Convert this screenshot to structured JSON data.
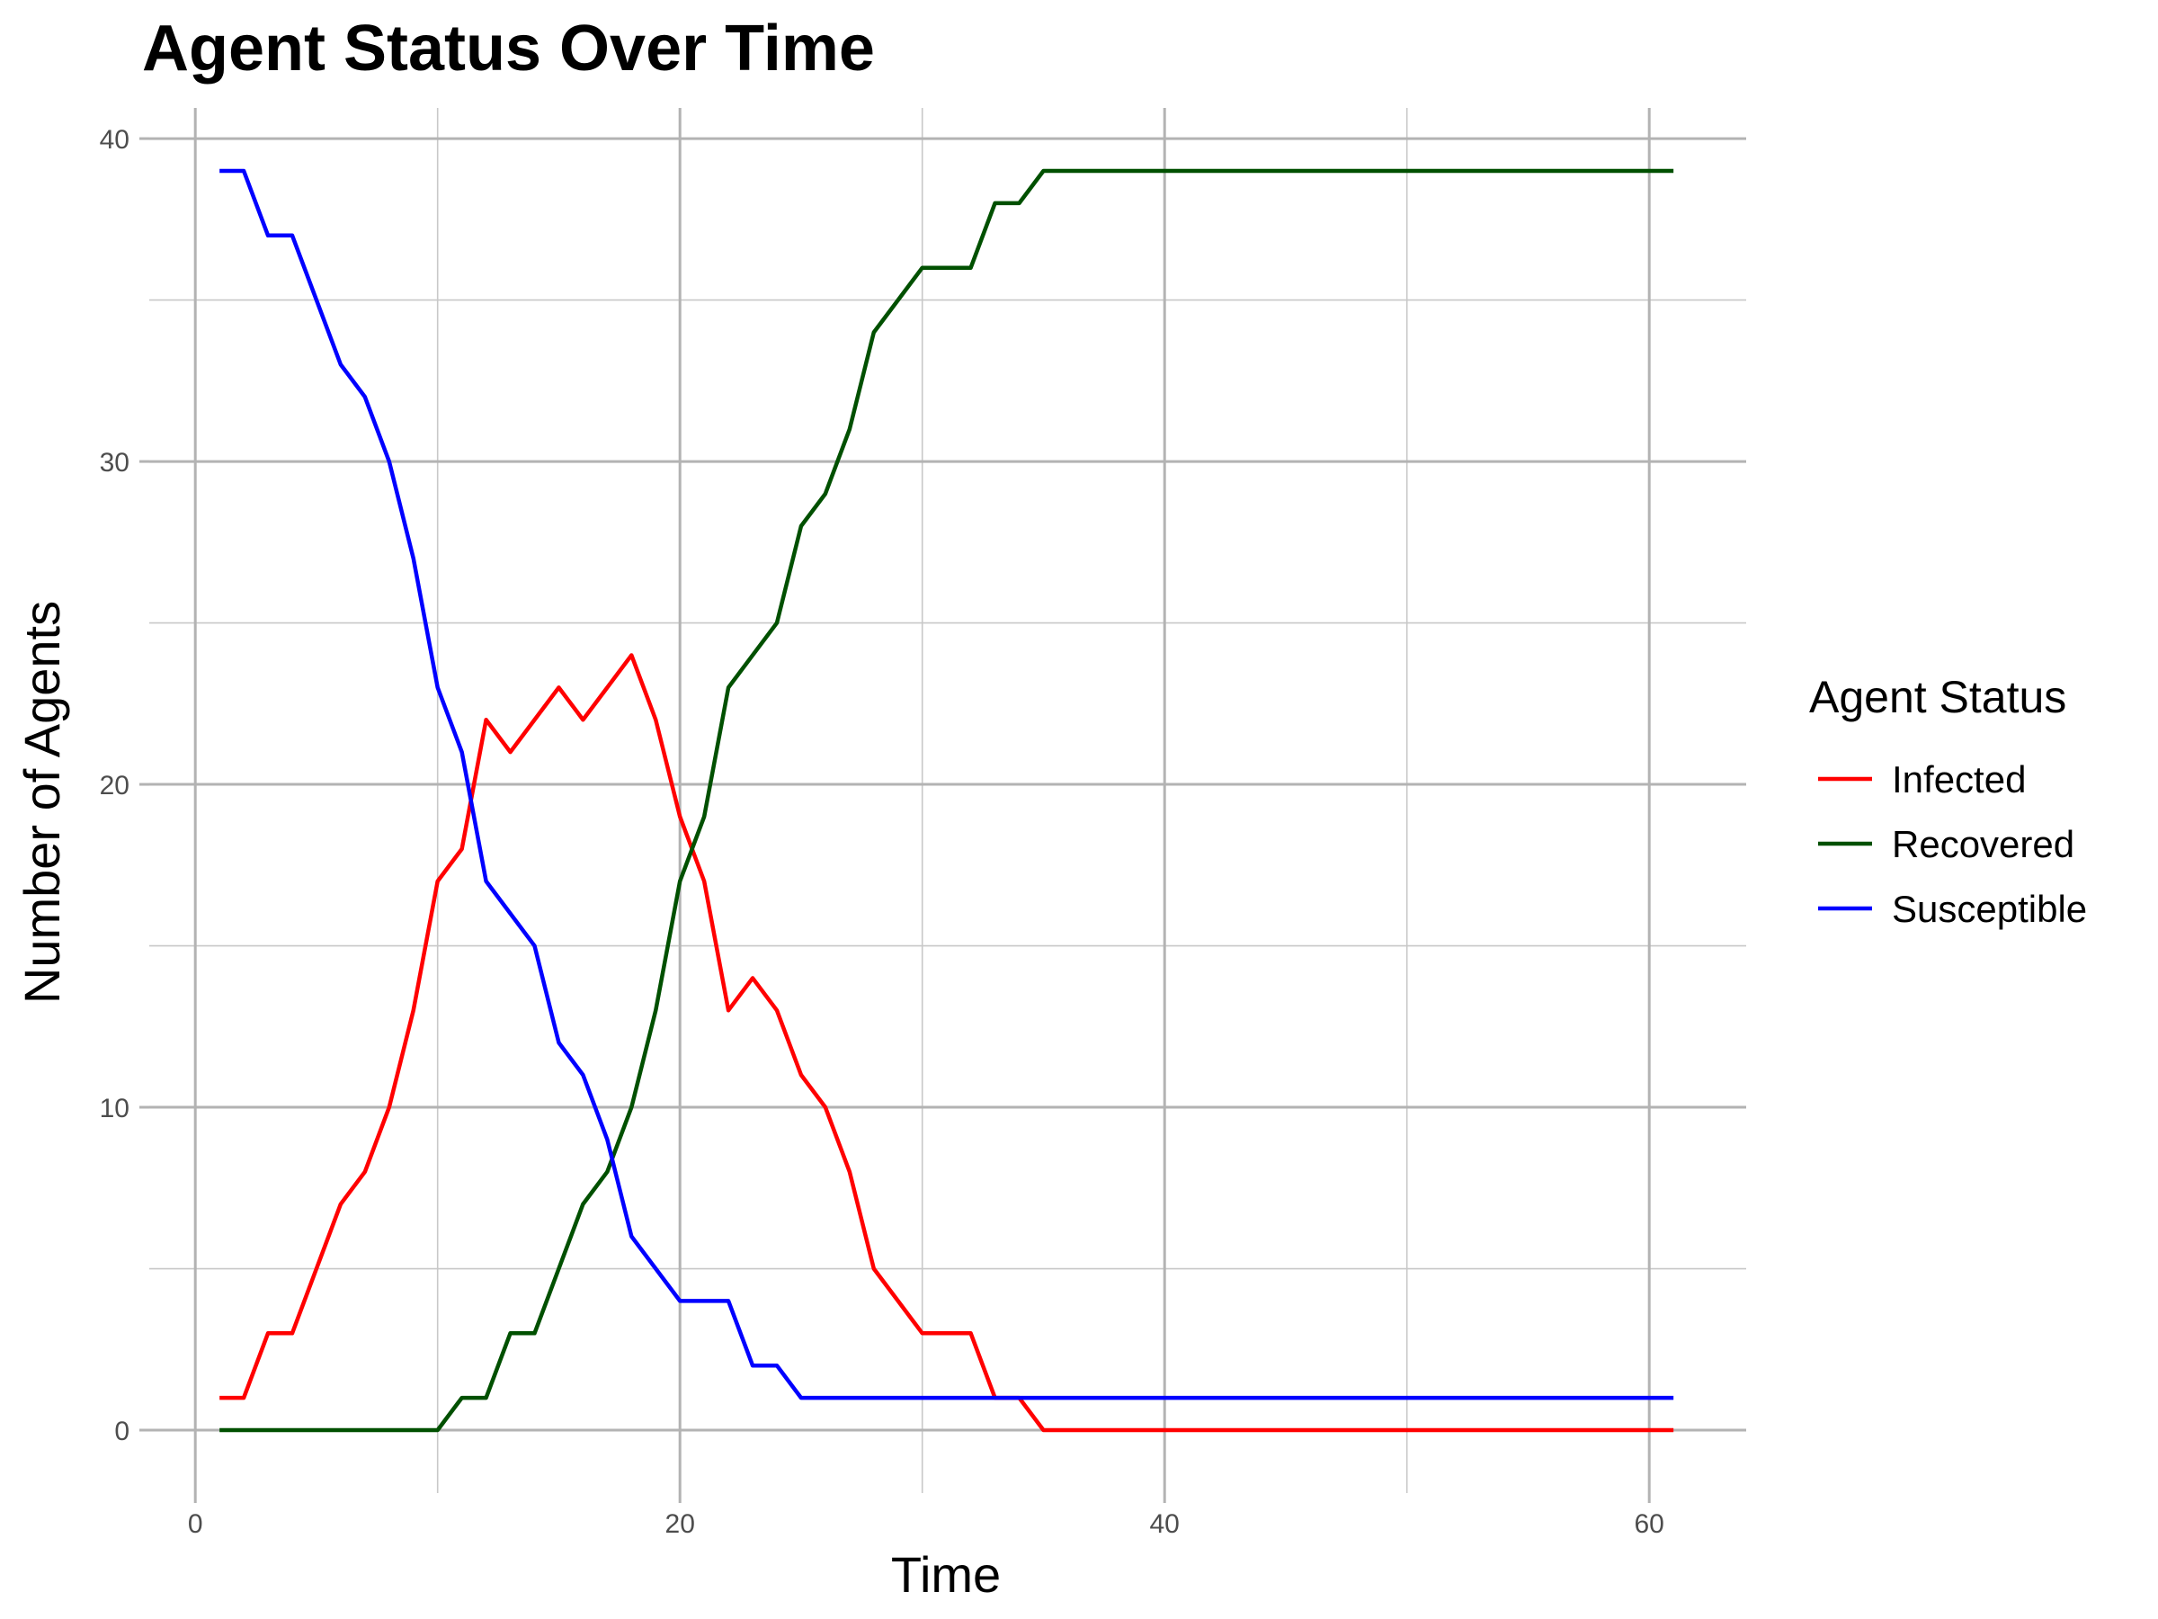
{
  "chart_data": {
    "type": "line",
    "title": "Agent Status Over Time",
    "xlabel": "Time",
    "ylabel": "Number of Agents",
    "xlim": [
      -1.9,
      64
    ],
    "ylim": [
      -1.95,
      40.95
    ],
    "x_ticks": [
      0,
      20,
      40,
      60
    ],
    "y_ticks": [
      0,
      10,
      20,
      30,
      40
    ],
    "grid": true,
    "legend": {
      "title": "Agent Status",
      "placement": "right"
    },
    "x": [
      1,
      2,
      3,
      4,
      5,
      6,
      7,
      8,
      9,
      10,
      11,
      12,
      13,
      14,
      15,
      16,
      17,
      18,
      19,
      20,
      21,
      22,
      23,
      24,
      25,
      26,
      27,
      28,
      29,
      30,
      31,
      32,
      33,
      34,
      35,
      36,
      37,
      38,
      39,
      40,
      41,
      42,
      43,
      44,
      45,
      46,
      47,
      48,
      49,
      50,
      51,
      52,
      53,
      54,
      55,
      56,
      57,
      58,
      59,
      60,
      61
    ],
    "series": [
      {
        "name": "Infected",
        "color": "#ff0000",
        "values": [
          1,
          1,
          3,
          3,
          5,
          7,
          8,
          10,
          13,
          17,
          18,
          22,
          21,
          22,
          23,
          22,
          23,
          24,
          22,
          19,
          17,
          13,
          14,
          13,
          11,
          10,
          8,
          5,
          4,
          3,
          3,
          3,
          1,
          1,
          0,
          0,
          0,
          0,
          0,
          0,
          0,
          0,
          0,
          0,
          0,
          0,
          0,
          0,
          0,
          0,
          0,
          0,
          0,
          0,
          0,
          0,
          0,
          0,
          0,
          0,
          0
        ]
      },
      {
        "name": "Recovered",
        "color": "#005000",
        "values": [
          0,
          0,
          0,
          0,
          0,
          0,
          0,
          0,
          0,
          0,
          1,
          1,
          3,
          3,
          5,
          7,
          8,
          10,
          13,
          17,
          19,
          23,
          24,
          25,
          28,
          29,
          31,
          34,
          35,
          36,
          36,
          36,
          38,
          38,
          39,
          39,
          39,
          39,
          39,
          39,
          39,
          39,
          39,
          39,
          39,
          39,
          39,
          39,
          39,
          39,
          39,
          39,
          39,
          39,
          39,
          39,
          39,
          39,
          39,
          39,
          39
        ]
      },
      {
        "name": "Susceptible",
        "color": "#0000ff",
        "values": [
          39,
          39,
          37,
          37,
          35,
          33,
          32,
          30,
          27,
          23,
          21,
          17,
          16,
          15,
          12,
          11,
          9,
          6,
          5,
          4,
          4,
          4,
          2,
          2,
          1,
          1,
          1,
          1,
          1,
          1,
          1,
          1,
          1,
          1,
          1,
          1,
          1,
          1,
          1,
          1,
          1,
          1,
          1,
          1,
          1,
          1,
          1,
          1,
          1,
          1,
          1,
          1,
          1,
          1,
          1,
          1,
          1,
          1,
          1,
          1,
          1
        ]
      }
    ]
  }
}
